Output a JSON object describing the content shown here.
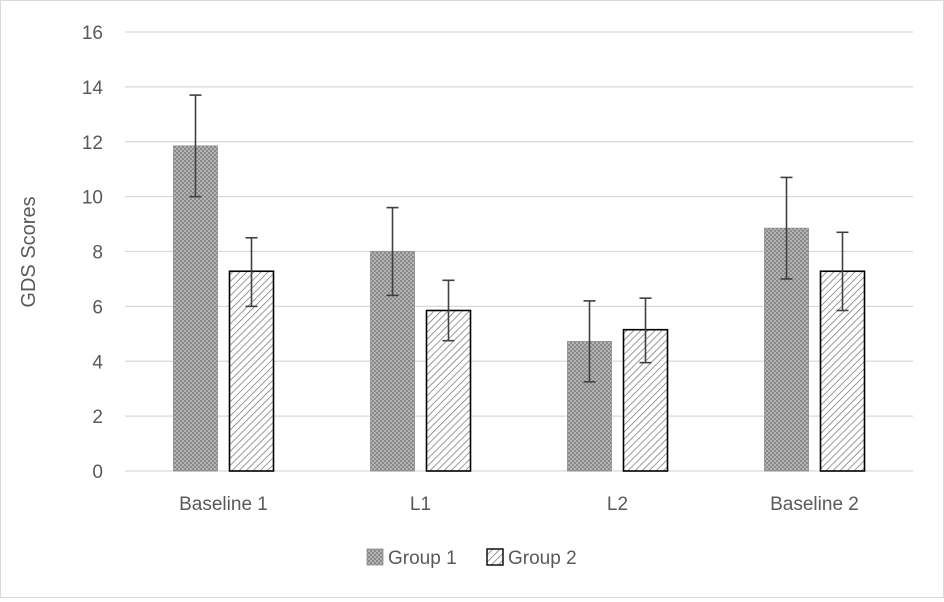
{
  "chart_data": {
    "type": "bar",
    "title": "",
    "xlabel": "",
    "ylabel": "GDS Scores",
    "ylim": [
      0,
      16
    ],
    "yticks": [
      0,
      2,
      4,
      6,
      8,
      10,
      12,
      14,
      16
    ],
    "grid": "horizontal",
    "legend_position": "bottom",
    "categories": [
      "Baseline 1",
      "L1",
      "L2",
      "Baseline 2"
    ],
    "series": [
      {
        "name": "Group 1",
        "pattern": "fine-crosshatch",
        "values": [
          11.85,
          8.0,
          4.72,
          8.85
        ],
        "error_low": [
          10.0,
          6.4,
          3.25,
          7.0
        ],
        "error_high": [
          13.7,
          9.6,
          6.2,
          10.7
        ]
      },
      {
        "name": "Group 2",
        "pattern": "diagonal-lines",
        "values": [
          7.28,
          5.85,
          5.15,
          7.28
        ],
        "error_low": [
          6.0,
          4.75,
          3.95,
          5.85
        ],
        "error_high": [
          8.5,
          6.95,
          6.3,
          8.7
        ]
      }
    ],
    "colors": {
      "grid": "#d9d9d9",
      "axis_text": "#595959",
      "group1_fill": "#a6a6a6",
      "group2_fill": "#ffffff",
      "group2_outline": "#000000",
      "error_bar": "#404040"
    }
  }
}
